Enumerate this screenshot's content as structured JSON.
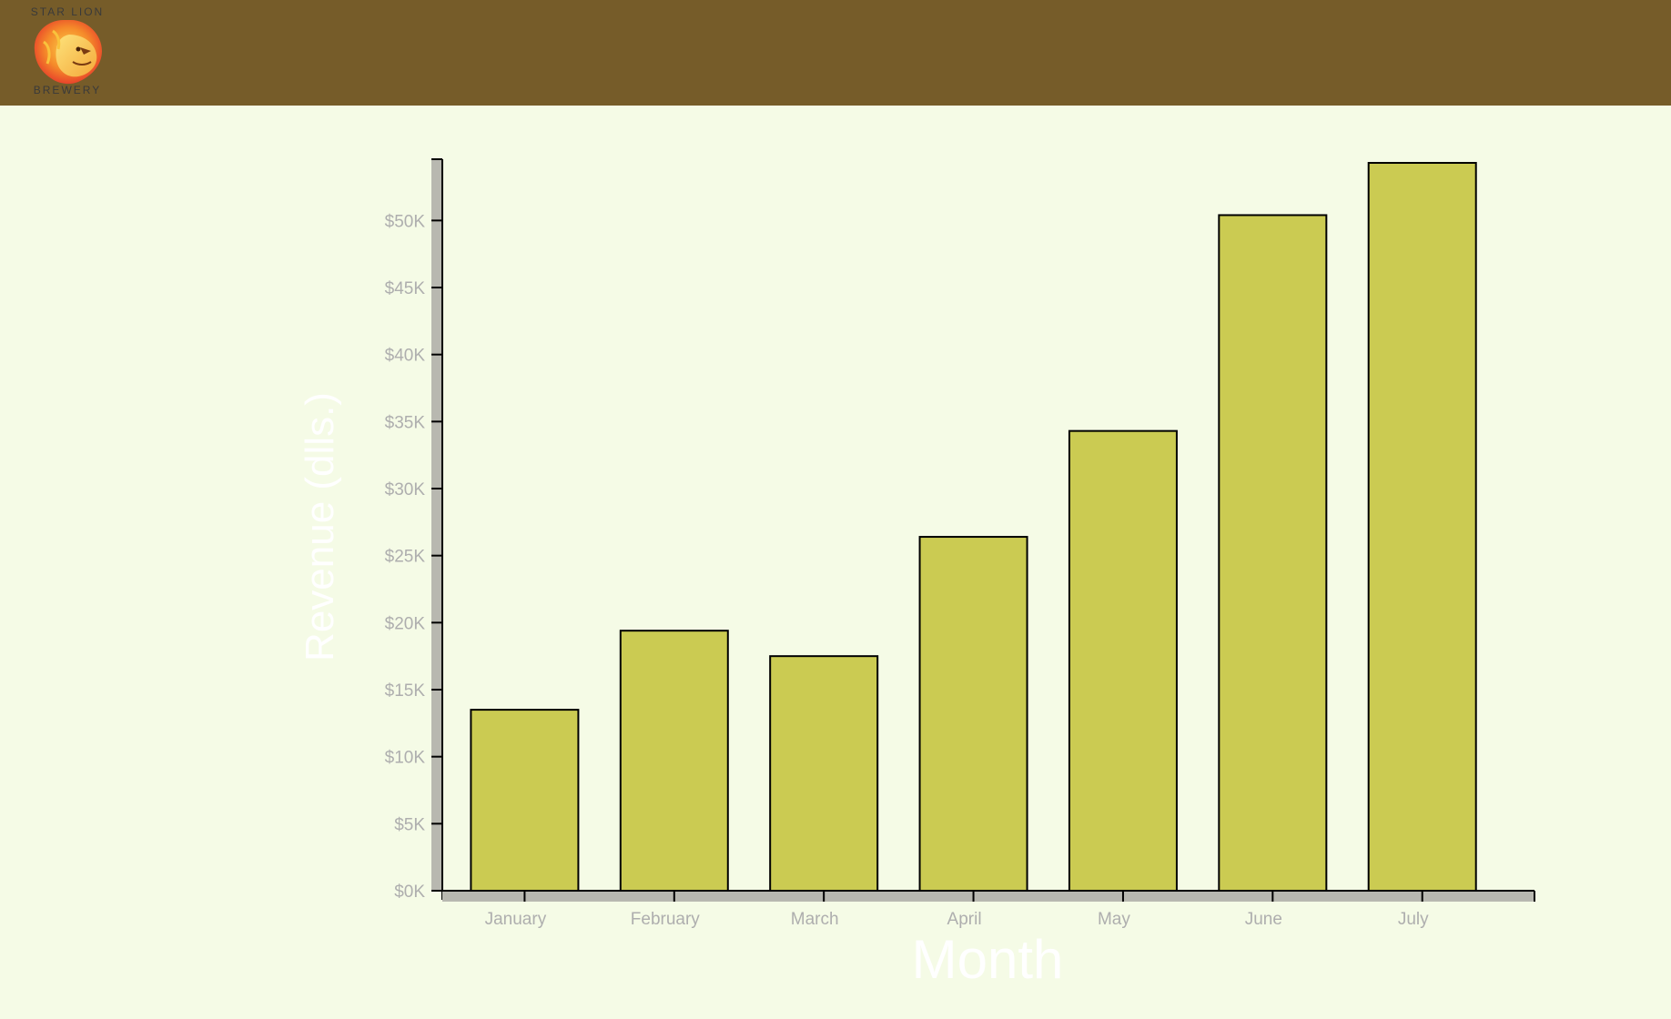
{
  "header": {
    "logo_top": "STAR LION",
    "logo_bottom": "BREWERY",
    "background": "#765c29"
  },
  "logo_icon": "lion-head-icon",
  "colors": {
    "page_background": "#f5fbe6",
    "bar_fill": "#cbcb52",
    "bar_stroke": "#000000",
    "axis_band": "#b8b8b0",
    "tick_label": "#aeaeae",
    "axis_title": "#ffffff"
  },
  "chart_data": {
    "type": "bar",
    "categories": [
      "January",
      "February",
      "March",
      "April",
      "May",
      "June",
      "July"
    ],
    "values": [
      13500,
      19400,
      17500,
      26400,
      34300,
      50400,
      54300
    ],
    "title": "",
    "xlabel": "Month",
    "ylabel": "Revenue (dlls.)",
    "ylim": [
      0,
      54300
    ],
    "yticks": [
      0,
      5000,
      10000,
      15000,
      20000,
      25000,
      30000,
      35000,
      40000,
      45000,
      50000
    ],
    "ytick_labels": [
      "$0K",
      "$5K",
      "$10K",
      "$15K",
      "$20K",
      "$25K",
      "$30K",
      "$35K",
      "$40K",
      "$45K",
      "$50K"
    ],
    "grid": false,
    "legend": "none"
  }
}
